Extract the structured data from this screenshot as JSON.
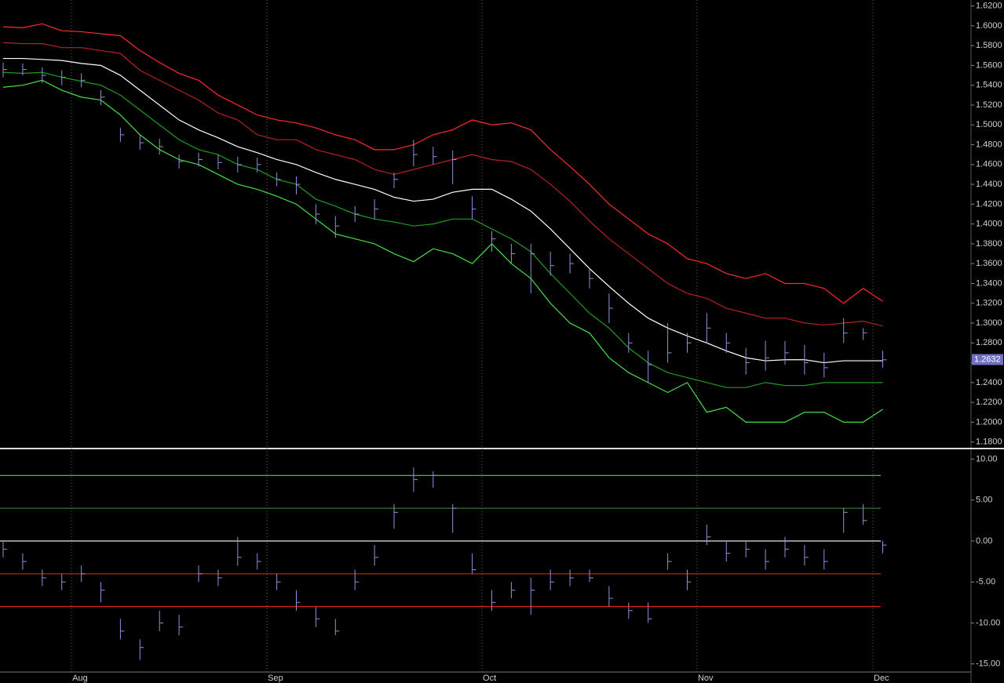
{
  "chart_data": [
    {
      "type": "ohlc",
      "high": [
        1.563,
        1.562,
        1.558,
        1.555,
        1.552,
        1.535,
        1.497,
        1.49,
        1.486,
        1.47,
        1.472,
        1.47,
        1.468,
        1.467,
        1.452,
        1.448,
        1.42,
        1.408,
        1.418,
        1.425,
        1.452,
        1.485,
        1.478,
        1.474,
        1.428,
        1.393,
        1.38,
        1.38,
        1.372,
        1.37,
        1.356,
        1.33,
        1.29,
        1.272,
        1.3,
        1.29,
        1.31,
        1.29,
        1.275,
        1.282,
        1.282,
        1.278,
        1.27,
        1.305,
        1.295,
        1.272
      ],
      "low": [
        1.548,
        1.55,
        1.542,
        1.54,
        1.538,
        1.52,
        1.483,
        1.475,
        1.47,
        1.456,
        1.458,
        1.455,
        1.452,
        1.452,
        1.438,
        1.43,
        1.4,
        1.386,
        1.402,
        1.405,
        1.436,
        1.458,
        1.46,
        1.44,
        1.405,
        1.372,
        1.36,
        1.33,
        1.348,
        1.35,
        1.335,
        1.3,
        1.27,
        1.24,
        1.26,
        1.27,
        1.28,
        1.27,
        1.248,
        1.252,
        1.258,
        1.248,
        1.245,
        1.28,
        1.283,
        1.255
      ],
      "close": [
        1.556,
        1.556,
        1.55,
        1.548,
        1.545,
        1.528,
        1.49,
        1.482,
        1.478,
        1.463,
        1.465,
        1.462,
        1.46,
        1.46,
        1.445,
        1.44,
        1.41,
        1.398,
        1.41,
        1.415,
        1.445,
        1.47,
        1.468,
        1.465,
        1.415,
        1.385,
        1.37,
        1.37,
        1.358,
        1.36,
        1.345,
        1.315,
        1.28,
        1.258,
        1.27,
        1.28,
        1.295,
        1.28,
        1.26,
        1.265,
        1.27,
        1.26,
        1.255,
        1.29,
        1.29,
        1.263
      ],
      "bar_color": "#8d92d8",
      "series": [
        {
          "color": "#ff2a2a",
          "values": [
            1.599,
            1.598,
            1.602,
            1.595,
            1.594,
            1.592,
            1.59,
            1.575,
            1.563,
            1.552,
            1.545,
            1.53,
            1.52,
            1.51,
            1.505,
            1.502,
            1.497,
            1.49,
            1.485,
            1.475,
            1.475,
            1.48,
            1.49,
            1.495,
            1.505,
            1.5,
            1.502,
            1.495,
            1.475,
            1.458,
            1.44,
            1.42,
            1.405,
            1.39,
            1.38,
            1.365,
            1.36,
            1.35,
            1.345,
            1.35,
            1.34,
            1.34,
            1.335,
            1.32,
            1.335,
            1.322
          ]
        },
        {
          "color": "#b82020",
          "values": [
            1.583,
            1.582,
            1.582,
            1.578,
            1.578,
            1.575,
            1.572,
            1.555,
            1.545,
            1.535,
            1.525,
            1.512,
            1.505,
            1.49,
            1.485,
            1.485,
            1.475,
            1.47,
            1.465,
            1.455,
            1.45,
            1.455,
            1.46,
            1.465,
            1.47,
            1.465,
            1.463,
            1.455,
            1.44,
            1.423,
            1.403,
            1.385,
            1.37,
            1.355,
            1.34,
            1.33,
            1.325,
            1.315,
            1.31,
            1.305,
            1.305,
            1.3,
            1.298,
            1.3,
            1.302,
            1.297
          ]
        },
        {
          "color": "#ffffff",
          "values": [
            1.567,
            1.567,
            1.566,
            1.565,
            1.562,
            1.56,
            1.55,
            1.535,
            1.52,
            1.505,
            1.495,
            1.487,
            1.478,
            1.472,
            1.465,
            1.46,
            1.452,
            1.445,
            1.44,
            1.435,
            1.427,
            1.423,
            1.425,
            1.432,
            1.435,
            1.435,
            1.425,
            1.413,
            1.395,
            1.375,
            1.355,
            1.337,
            1.32,
            1.305,
            1.295,
            1.287,
            1.28,
            1.272,
            1.265,
            1.262,
            1.263,
            1.263,
            1.26,
            1.262,
            1.262,
            1.262
          ]
        },
        {
          "color": "#1f9a1f",
          "values": [
            1.553,
            1.552,
            1.553,
            1.548,
            1.544,
            1.54,
            1.53,
            1.515,
            1.5,
            1.485,
            1.475,
            1.47,
            1.46,
            1.455,
            1.445,
            1.44,
            1.425,
            1.418,
            1.41,
            1.405,
            1.402,
            1.398,
            1.4,
            1.405,
            1.405,
            1.395,
            1.385,
            1.372,
            1.35,
            1.33,
            1.31,
            1.295,
            1.275,
            1.26,
            1.25,
            1.245,
            1.24,
            1.235,
            1.235,
            1.24,
            1.237,
            1.237,
            1.24,
            1.24,
            1.24,
            1.24
          ]
        },
        {
          "color": "#46e046",
          "values": [
            1.538,
            1.54,
            1.545,
            1.535,
            1.528,
            1.525,
            1.51,
            1.49,
            1.475,
            1.465,
            1.46,
            1.45,
            1.44,
            1.435,
            1.428,
            1.42,
            1.405,
            1.39,
            1.385,
            1.38,
            1.37,
            1.362,
            1.375,
            1.37,
            1.36,
            1.38,
            1.36,
            1.345,
            1.32,
            1.3,
            1.29,
            1.265,
            1.25,
            1.24,
            1.23,
            1.24,
            1.21,
            1.215,
            1.2,
            1.2,
            1.2,
            1.21,
            1.21,
            1.2,
            1.2,
            1.213
          ]
        }
      ],
      "ylim": [
        1.175,
        1.626
      ],
      "yticks": [
        {
          "value": 1.18,
          "label": "1.1800"
        },
        {
          "value": 1.2,
          "label": "1.2000"
        },
        {
          "value": 1.22,
          "label": "1.2200"
        },
        {
          "value": 1.24,
          "label": "1.2400"
        },
        {
          "value": 1.26,
          "label": "1.2600"
        },
        {
          "value": 1.28,
          "label": "1.2800"
        },
        {
          "value": 1.3,
          "label": "1.3000"
        },
        {
          "value": 1.32,
          "label": "1.3200"
        },
        {
          "value": 1.34,
          "label": "1.3400"
        },
        {
          "value": 1.36,
          "label": "1.3600"
        },
        {
          "value": 1.38,
          "label": "1.3800"
        },
        {
          "value": 1.4,
          "label": "1.4000"
        },
        {
          "value": 1.42,
          "label": "1.4200"
        },
        {
          "value": 1.44,
          "label": "1.4400"
        },
        {
          "value": 1.46,
          "label": "1.4600"
        },
        {
          "value": 1.48,
          "label": "1.4800"
        },
        {
          "value": 1.5,
          "label": "1.5000"
        },
        {
          "value": 1.52,
          "label": "1.5200"
        },
        {
          "value": 1.54,
          "label": "1.5400"
        },
        {
          "value": 1.56,
          "label": "1.5600"
        },
        {
          "value": 1.58,
          "label": "1.5800"
        },
        {
          "value": 1.6,
          "label": "1.6000"
        },
        {
          "value": 1.62,
          "label": "1.6200"
        }
      ],
      "last_value": 1.2632
    },
    {
      "type": "ohlc",
      "categories": [
        null,
        null,
        null,
        null,
        "Aug",
        null,
        null,
        null,
        null,
        null,
        null,
        null,
        null,
        null,
        "Sep",
        null,
        null,
        null,
        null,
        null,
        null,
        null,
        null,
        null,
        null,
        "Oct",
        null,
        null,
        null,
        null,
        null,
        null,
        null,
        null,
        null,
        null,
        "Nov",
        null,
        null,
        null,
        null,
        null,
        null,
        null,
        null,
        "Dec"
      ],
      "high": [
        0,
        -1.5,
        -3.5,
        -4,
        -3,
        -5,
        -9.5,
        -12,
        -8.5,
        -9,
        -3,
        -3.5,
        0.5,
        -1.5,
        -4,
        -6,
        -8,
        -9.5,
        -3.5,
        -0.5,
        4.5,
        9,
        8.5,
        4.5,
        -1.5,
        -6,
        -5,
        -4.5,
        -3.5,
        -3.5,
        -3.5,
        -5.5,
        -7.5,
        -7.5,
        -1.5,
        -3.5,
        2,
        0,
        0,
        -1,
        0.5,
        -0.5,
        -1,
        4,
        4.5,
        0
      ],
      "low": [
        -2,
        -3.5,
        -5.5,
        -6,
        -5,
        -7.5,
        -12,
        -14.5,
        -11,
        -11.5,
        -5,
        -5.5,
        -3,
        -3.5,
        -6,
        -8.5,
        -10.5,
        -11.5,
        -6,
        -3,
        1.5,
        6,
        6.5,
        1,
        -4,
        -8.5,
        -7,
        -9,
        -6,
        -5.5,
        -5,
        -8,
        -9.5,
        -10,
        -3.5,
        -6,
        -0.5,
        -2.5,
        -2,
        -3.5,
        -2,
        -3,
        -3.5,
        1,
        2,
        -1.5
      ],
      "close": [
        -1,
        -2.5,
        -4.5,
        -5,
        -4,
        -6,
        -11,
        -13,
        -10,
        -10.5,
        -4,
        -4.5,
        -2,
        -2.5,
        -5,
        -7.5,
        -9.5,
        -11,
        -5,
        -2,
        3.5,
        7.5,
        8,
        4,
        -3.5,
        -7.5,
        -6,
        -6,
        -5,
        -4.5,
        -4.5,
        -7,
        -8.5,
        -9.5,
        -2.5,
        -5,
        0.5,
        -1.5,
        -1,
        -2.5,
        -1,
        -2,
        -2.5,
        3.5,
        2.5,
        -0.5
      ],
      "bar_color": "#8d92d8",
      "levels": [
        8,
        4,
        0,
        -4,
        -8
      ],
      "level_colors": [
        "#3fbf3f",
        "#2a7a2a",
        "#ffffff",
        "#b82020",
        "#e02020"
      ],
      "ylim": [
        -15.8,
        11
      ],
      "yticks": [
        {
          "value": 10,
          "label": "10.00"
        },
        {
          "value": 5,
          "label": "5.00"
        },
        {
          "value": 0,
          "label": "0.00"
        },
        {
          "value": -5,
          "label": "-5.00"
        },
        {
          "value": -10,
          "label": "-10.00"
        },
        {
          "value": -15,
          "label": "-15.00"
        }
      ]
    }
  ]
}
